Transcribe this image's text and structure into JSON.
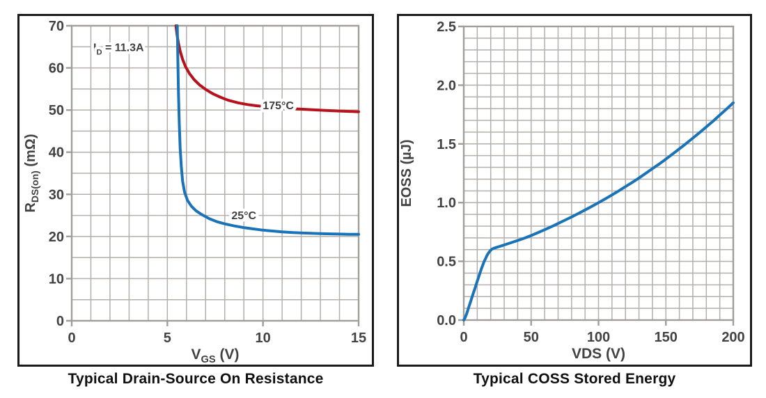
{
  "figure": {
    "background": "#ffffff",
    "grid_color": "#b3afac",
    "frame_color": "#a19d9a",
    "panel_border_color": "#1a1a1a",
    "tick_text_color": "#424242",
    "label_text_color": "#3f3f3f",
    "title_text_color": "#101010"
  },
  "chart_data": [
    {
      "type": "line",
      "title": "Typical Drain-Source On Resistance",
      "xlabel": "VGS (V)",
      "ylabel": "RDS(on) (mΩ)",
      "xlabel_parts": [
        {
          "t": "V"
        },
        {
          "t": "GS",
          "sub": true
        },
        {
          "t": " (V)"
        }
      ],
      "ylabel_parts": [
        {
          "t": "R"
        },
        {
          "t": "DS(on)",
          "sub": true
        },
        {
          "t": " (mΩ)"
        }
      ],
      "xlim": [
        0,
        15
      ],
      "ylim": [
        0,
        70
      ],
      "x_major": 5,
      "x_minor": 1,
      "y_major": 10,
      "y_minor": 5,
      "x_tick_labels": [
        "0",
        "5",
        "10",
        "15"
      ],
      "y_tick_labels": [
        "0",
        "10",
        "20",
        "30",
        "40",
        "50",
        "60",
        "70"
      ],
      "grid": true,
      "legend_position": "inline-curve-labels",
      "annotations": [
        {
          "text": "ID = 11.3A",
          "parts": [
            {
              "t": "I"
            },
            {
              "t": "D",
              "sub": true
            },
            {
              "t": " = 11.3A"
            }
          ],
          "x": 2.45,
          "y": 65
        }
      ],
      "series": [
        {
          "name": "175°C",
          "color": "#b5121b",
          "label": {
            "text": "175°C",
            "x": 10.8,
            "y": 51.2
          },
          "points": [
            [
              5.45,
              70
            ],
            [
              5.5,
              68
            ],
            [
              5.58,
              65.8
            ],
            [
              5.68,
              63.8
            ],
            [
              5.8,
              62
            ],
            [
              5.95,
              60.3
            ],
            [
              6.15,
              58.7
            ],
            [
              6.4,
              57.2
            ],
            [
              6.7,
              55.9
            ],
            [
              7,
              54.9
            ],
            [
              7.4,
              53.8
            ],
            [
              7.8,
              53
            ],
            [
              8.2,
              52.3
            ],
            [
              8.7,
              51.7
            ],
            [
              9.2,
              51.3
            ],
            [
              9.7,
              51
            ],
            [
              10.2,
              50.8
            ],
            [
              10.8,
              50.55
            ],
            [
              11.4,
              50.35
            ],
            [
              12,
              50.2
            ],
            [
              12.6,
              50.05
            ],
            [
              13.2,
              49.92
            ],
            [
              13.8,
              49.8
            ],
            [
              14.4,
              49.7
            ],
            [
              15,
              49.6
            ]
          ]
        },
        {
          "name": "25°C",
          "color": "#1a73b7",
          "label": {
            "text": "25°C",
            "x": 9.0,
            "y": 25.1
          },
          "points": [
            [
              5.52,
              70
            ],
            [
              5.55,
              62
            ],
            [
              5.58,
              54
            ],
            [
              5.62,
              47
            ],
            [
              5.67,
              41
            ],
            [
              5.73,
              36.5
            ],
            [
              5.8,
              33
            ],
            [
              5.9,
              30.5
            ],
            [
              6.05,
              28.6
            ],
            [
              6.25,
              27.2
            ],
            [
              6.5,
              26.1
            ],
            [
              6.8,
              25.2
            ],
            [
              7.2,
              24.2
            ],
            [
              7.6,
              23.5
            ],
            [
              8,
              23
            ],
            [
              8.5,
              22.5
            ],
            [
              9,
              22.1
            ],
            [
              9.5,
              21.8
            ],
            [
              10,
              21.5
            ],
            [
              10.5,
              21.3
            ],
            [
              11,
              21.1
            ],
            [
              11.5,
              20.95
            ],
            [
              12,
              20.85
            ],
            [
              12.5,
              20.75
            ],
            [
              13,
              20.68
            ],
            [
              13.5,
              20.62
            ],
            [
              14,
              20.57
            ],
            [
              14.5,
              20.52
            ],
            [
              15,
              20.5
            ]
          ]
        }
      ]
    },
    {
      "type": "line",
      "title": "Typical COSS Stored Energy",
      "xlabel": "VDS (V)",
      "ylabel": "EOSS (µJ)",
      "xlabel_parts": [
        {
          "t": "VDS (V)"
        }
      ],
      "ylabel_parts": [
        {
          "t": "EOSS (µJ)"
        }
      ],
      "xlim": [
        0,
        200
      ],
      "ylim": [
        0,
        2.5
      ],
      "x_major": 50,
      "x_minor": 10,
      "y_major": 0.5,
      "y_minor": 0.1,
      "x_tick_labels": [
        "0",
        "50",
        "100",
        "150",
        "200"
      ],
      "y_tick_labels": [
        "0.0",
        "0.5",
        "1.0",
        "1.5",
        "2.0",
        "2.5"
      ],
      "grid": true,
      "legend_position": "none",
      "annotations": [],
      "series": [
        {
          "name": "EOSS",
          "color": "#1a73b7",
          "points": [
            [
              0,
              0
            ],
            [
              1,
              0.02
            ],
            [
              2,
              0.05
            ],
            [
              3,
              0.085
            ],
            [
              4,
              0.12
            ],
            [
              5,
              0.155
            ],
            [
              6,
              0.19
            ],
            [
              7,
              0.225
            ],
            [
              8,
              0.26
            ],
            [
              9,
              0.295
            ],
            [
              10,
              0.33
            ],
            [
              11,
              0.365
            ],
            [
              12,
              0.4
            ],
            [
              13,
              0.435
            ],
            [
              14,
              0.465
            ],
            [
              15,
              0.495
            ],
            [
              16,
              0.52
            ],
            [
              17,
              0.545
            ],
            [
              18,
              0.565
            ],
            [
              19,
              0.582
            ],
            [
              20,
              0.595
            ],
            [
              21,
              0.604
            ],
            [
              22,
              0.61
            ],
            [
              24,
              0.618
            ],
            [
              26,
              0.625
            ],
            [
              28,
              0.632
            ],
            [
              30,
              0.64
            ],
            [
              35,
              0.658
            ],
            [
              40,
              0.678
            ],
            [
              45,
              0.698
            ],
            [
              50,
              0.72
            ],
            [
              55,
              0.744
            ],
            [
              60,
              0.769
            ],
            [
              65,
              0.795
            ],
            [
              70,
              0.822
            ],
            [
              75,
              0.85
            ],
            [
              80,
              0.878
            ],
            [
              85,
              0.907
            ],
            [
              90,
              0.937
            ],
            [
              95,
              0.968
            ],
            [
              100,
              1.0
            ],
            [
              105,
              1.032
            ],
            [
              110,
              1.066
            ],
            [
              115,
              1.1
            ],
            [
              120,
              1.136
            ],
            [
              125,
              1.172
            ],
            [
              130,
              1.21
            ],
            [
              135,
              1.249
            ],
            [
              140,
              1.289
            ],
            [
              145,
              1.329
            ],
            [
              150,
              1.371
            ],
            [
              155,
              1.414
            ],
            [
              160,
              1.458
            ],
            [
              165,
              1.503
            ],
            [
              170,
              1.549
            ],
            [
              175,
              1.596
            ],
            [
              180,
              1.645
            ],
            [
              185,
              1.694
            ],
            [
              190,
              1.745
            ],
            [
              195,
              1.797
            ],
            [
              200,
              1.85
            ]
          ]
        }
      ]
    }
  ]
}
